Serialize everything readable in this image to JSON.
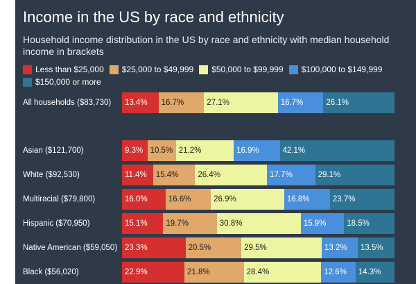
{
  "header": {
    "title": "Income in the US by race and ethnicity",
    "subtitle": "Household income distribution in the US by race and ethnicity with median household income in brackets"
  },
  "chart_data": {
    "type": "bar",
    "stacked": true,
    "orientation": "horizontal",
    "title": "Income in the US by race and ethnicity",
    "subtitle": "Household income distribution in the US by race and ethnicity with median household income in brackets",
    "categories": [
      "All households ($83,730)",
      "Asian ($121,700)",
      "White ($92,530)",
      "Multiracial ($79,800)",
      "Hispanic ($70,950)",
      "Native American ($59,050)",
      "Black ($56,020)"
    ],
    "series": [
      {
        "name": "Less than $25,000",
        "color": "#d62f2f",
        "values": [
          13.4,
          9.3,
          11.4,
          16.0,
          15.1,
          23.3,
          22.9
        ]
      },
      {
        "name": "$25,000 to $49,999",
        "color": "#e0a86a",
        "values": [
          16.7,
          10.5,
          15.4,
          16.6,
          19.7,
          20.5,
          21.8
        ]
      },
      {
        "name": "$50,000 to $99,999",
        "color": "#edf5a0",
        "values": [
          27.1,
          21.2,
          26.4,
          26.9,
          30.8,
          29.5,
          28.4
        ]
      },
      {
        "name": "$100,000 to $149,999",
        "color": "#4a8fdb",
        "values": [
          16.7,
          16.9,
          17.7,
          16.8,
          15.9,
          13.2,
          12.6
        ]
      },
      {
        "name": "$150,000 or more",
        "color": "#2e7494",
        "values": [
          26.1,
          42.1,
          29.1,
          23.7,
          18.5,
          13.5,
          14.3
        ]
      }
    ],
    "unit": "%",
    "xlim": [
      0,
      100
    ],
    "legend": "top-left"
  }
}
